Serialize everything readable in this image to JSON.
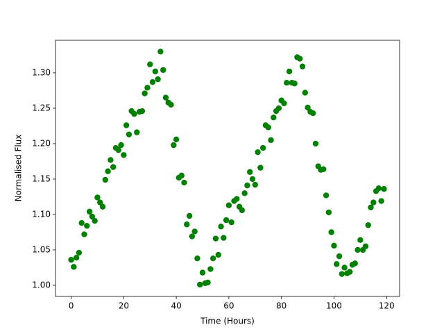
{
  "chart_data": {
    "type": "scatter",
    "xlabel": "Time (Hours)",
    "ylabel": "Normalised Flux",
    "x": [
      0,
      1,
      2,
      3,
      4,
      5,
      6,
      7,
      8,
      9,
      10,
      11,
      12,
      13,
      14,
      15,
      16,
      17,
      18,
      19,
      20,
      21,
      22,
      23,
      24,
      25,
      26,
      27,
      28,
      29,
      30,
      31,
      32,
      33,
      34,
      35,
      36,
      37,
      38,
      39,
      40,
      41,
      42,
      43,
      44,
      45,
      46,
      47,
      48,
      49,
      50,
      51,
      52,
      53,
      54,
      55,
      56,
      57,
      58,
      59,
      60,
      61,
      62,
      63,
      64,
      65,
      66,
      67,
      68,
      69,
      70,
      71,
      72,
      73,
      74,
      75,
      76,
      77,
      78,
      79,
      80,
      81,
      82,
      83,
      84,
      85,
      86,
      87,
      88,
      89,
      90,
      91,
      92,
      93,
      94,
      95,
      96,
      97,
      98,
      99,
      100,
      101,
      102,
      103,
      104,
      105,
      106,
      107,
      108,
      109,
      110,
      111,
      112,
      113,
      114,
      115,
      116,
      117,
      118,
      119
    ],
    "series": [
      {
        "color": "#008000",
        "values": [
          1.036,
          1.026,
          1.039,
          1.046,
          1.088,
          1.072,
          1.084,
          1.104,
          1.097,
          1.091,
          1.124,
          1.117,
          1.111,
          1.149,
          1.161,
          1.177,
          1.167,
          1.194,
          1.191,
          1.198,
          1.184,
          1.226,
          1.213,
          1.246,
          1.242,
          1.216,
          1.245,
          1.246,
          1.271,
          1.279,
          1.312,
          1.287,
          1.302,
          1.291,
          1.33,
          1.304,
          1.265,
          1.258,
          1.255,
          1.198,
          1.206,
          1.152,
          1.155,
          1.145,
          1.086,
          1.098,
          1.069,
          1.076,
          1.038,
          1.001,
          1.018,
          1.003,
          1.004,
          1.023,
          1.038,
          1.066,
          1.043,
          1.083,
          1.067,
          1.092,
          1.113,
          1.089,
          1.119,
          1.122,
          1.111,
          1.106,
          1.13,
          1.141,
          1.16,
          1.15,
          1.142,
          1.188,
          1.166,
          1.194,
          1.226,
          1.223,
          1.205,
          1.237,
          1.246,
          1.25,
          1.261,
          1.257,
          1.286,
          1.302,
          1.286,
          1.285,
          1.322,
          1.32,
          1.309,
          1.272,
          1.251,
          1.245,
          1.243,
          1.2,
          1.168,
          1.163,
          1.164,
          1.127,
          1.103,
          1.075,
          1.056,
          1.03,
          1.041,
          1.016,
          1.025,
          1.017,
          1.019,
          1.029,
          1.031,
          1.05,
          1.064,
          1.05,
          1.055,
          1.085,
          1.11,
          1.117,
          1.133,
          1.137,
          1.119,
          1.136
        ]
      }
    ],
    "xlim": [
      -5.95,
      124.95
    ],
    "xticks": [
      0,
      20,
      40,
      60,
      80,
      100,
      120
    ],
    "ylim": [
      0.9843,
      1.346
    ],
    "yticks": [
      {
        "value": 1.0,
        "label": "1.00"
      },
      {
        "value": 1.05,
        "label": "1.05"
      },
      {
        "value": 1.1,
        "label": "1.10"
      },
      {
        "value": 1.15,
        "label": "1.15"
      },
      {
        "value": 1.2,
        "label": "1.20"
      },
      {
        "value": 1.25,
        "label": "1.25"
      },
      {
        "value": 1.3,
        "label": "1.30"
      }
    ],
    "grid": false
  }
}
